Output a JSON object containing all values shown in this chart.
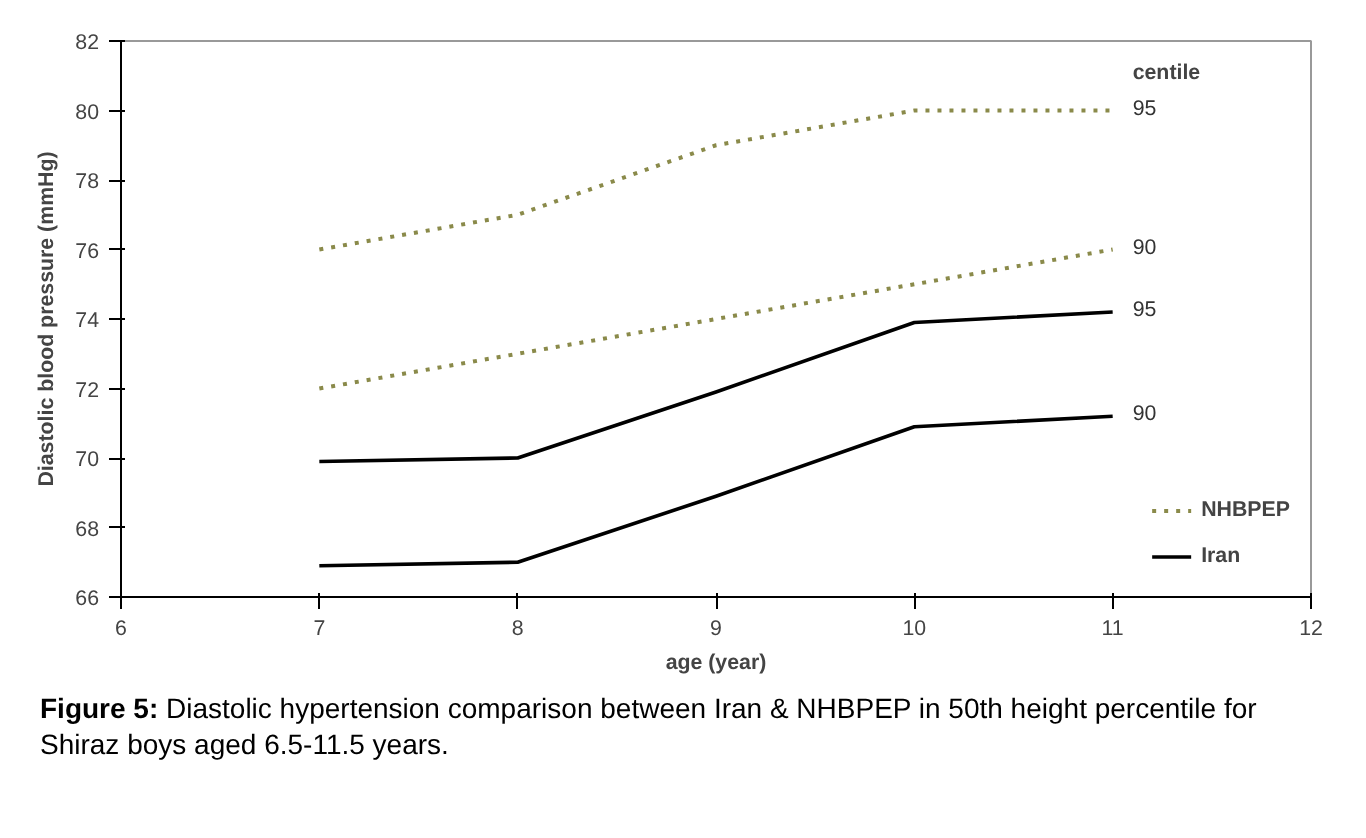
{
  "chart_data": {
    "type": "line",
    "xlabel": "age (year)",
    "ylabel": "Diastolic blood pressure (mmHg)",
    "x": [
      7,
      8,
      9,
      10,
      11
    ],
    "xlim": [
      6,
      12
    ],
    "xticks": [
      6,
      7,
      8,
      9,
      10,
      11,
      12
    ],
    "ylim": [
      66,
      82
    ],
    "yticks": [
      66,
      68,
      70,
      72,
      74,
      76,
      78,
      80,
      82
    ],
    "series": [
      {
        "name": "NHBPEP",
        "color": "#8a8a4a",
        "line_style": "dotted",
        "values": [
          76,
          77,
          79,
          80,
          80
        ]
      },
      {
        "color": "#8a8a4a",
        "line_style": "dotted",
        "values": [
          72,
          73,
          74,
          75,
          76
        ]
      },
      {
        "name": "Iran",
        "color": "#000000",
        "line_style": "solid",
        "values": [
          69.9,
          70,
          71.9,
          73.9,
          74.2
        ]
      },
      {
        "color": "#000000",
        "line_style": "solid",
        "values": [
          66.9,
          67,
          68.9,
          70.9,
          71.2
        ]
      }
    ],
    "annotations": [
      "centile",
      "95",
      "90",
      "95",
      "90",
      "Figure 5: Diastolic hypertension comparison between Iran & NHBPEP in 50th height percentile for Shiraz boys aged 6.5-11.5 years."
    ],
    "legend": "bottom right",
    "grid": false,
    "marker": "none"
  }
}
